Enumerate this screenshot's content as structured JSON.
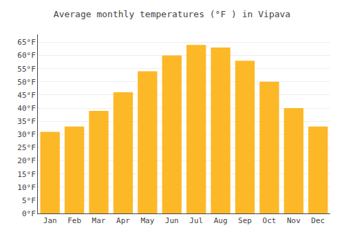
{
  "chart_data": {
    "type": "bar",
    "title": "Average monthly temperatures (°F ) in Vipava",
    "categories": [
      "Jan",
      "Feb",
      "Mar",
      "Apr",
      "May",
      "Jun",
      "Jul",
      "Aug",
      "Sep",
      "Oct",
      "Nov",
      "Dec"
    ],
    "values": [
      31,
      33,
      39,
      46,
      54,
      60,
      64,
      63,
      58,
      50,
      40,
      33
    ],
    "color": "#FDB827",
    "ylim": [
      0,
      68
    ],
    "yticks": [
      {
        "value": 0,
        "label": "0°F"
      },
      {
        "value": 5,
        "label": "5°F"
      },
      {
        "value": 10,
        "label": "10°F"
      },
      {
        "value": 15,
        "label": "15°F"
      },
      {
        "value": 20,
        "label": "20°F"
      },
      {
        "value": 25,
        "label": "25°F"
      },
      {
        "value": 30,
        "label": "30°F"
      },
      {
        "value": 35,
        "label": "35°F"
      },
      {
        "value": 40,
        "label": "40°F"
      },
      {
        "value": 45,
        "label": "45°F"
      },
      {
        "value": 50,
        "label": "50°F"
      },
      {
        "value": 55,
        "label": "55°F"
      },
      {
        "value": 60,
        "label": "60°F"
      },
      {
        "value": 65,
        "label": "65°F"
      }
    ],
    "grid": true
  }
}
